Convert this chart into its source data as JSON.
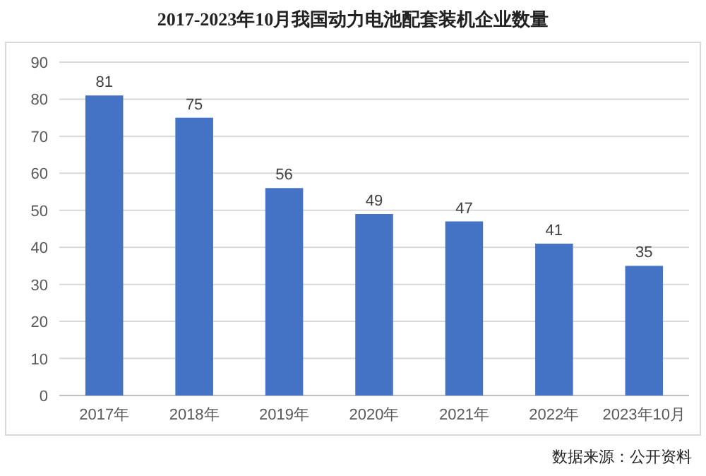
{
  "chart_data": {
    "type": "bar",
    "title": "2017-2023年10月我国动力电池配套装机企业数量",
    "categories": [
      "2017年",
      "2018年",
      "2019年",
      "2020年",
      "2021年",
      "2022年",
      "2023年10月"
    ],
    "values": [
      81,
      75,
      56,
      49,
      47,
      41,
      35
    ],
    "color": "#4472c4",
    "ylim": [
      0,
      90
    ],
    "yticks": [
      0,
      10,
      20,
      30,
      40,
      50,
      60,
      70,
      80,
      90
    ],
    "grid": "y",
    "data_labels": true,
    "annotations": [
      "数据来源：公开资料"
    ]
  }
}
